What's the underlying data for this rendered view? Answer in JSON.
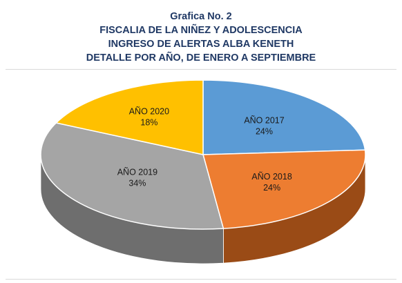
{
  "title_lines": [
    "Grafica No. 2",
    "FISCALIA DE LA NIÑEZ Y ADOLESCENCIA",
    "INGRESO DE ALERTAS ALBA KENETH",
    "DETALLE POR AÑO, DE ENERO A SEPTIEMBRE"
  ],
  "chart_data": {
    "type": "pie",
    "title": "Grafica No. 2 FISCALIA DE LA NIÑEZ Y ADOLESCENCIA INGRESO DE ALERTAS ALBA KENETH DETALLE POR AÑO, DE ENERO A SEPTIEMBRE",
    "style": "3d",
    "categories": [
      "AÑO 2017",
      "AÑO 2018",
      "AÑO 2019",
      "AÑO 2020"
    ],
    "values": [
      24,
      24,
      34,
      18
    ],
    "value_labels": [
      "24%",
      "24%",
      "34%",
      "18%"
    ],
    "colors": [
      "#5b9bd5",
      "#ed7d31",
      "#a5a5a5",
      "#ffc000"
    ],
    "side_colors": [
      "#3e6f9c",
      "#9a4b16",
      "#6e6e6e",
      "#b38600"
    ],
    "legend": "none"
  }
}
